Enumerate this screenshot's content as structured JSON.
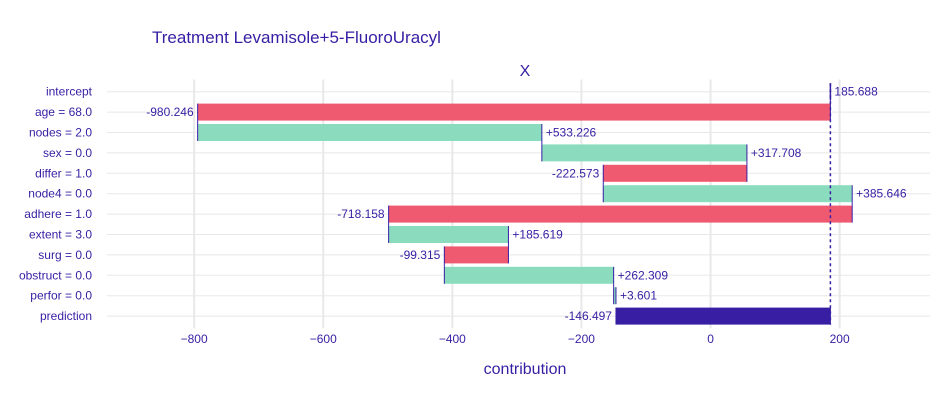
{
  "chart_data": {
    "type": "bar",
    "subtype": "waterfall (break-down)",
    "title": "Treatment Levamisole+5-FluoroUracyl",
    "subtitle": "X",
    "xlabel": "contribution",
    "xlim": [
      -935,
      340
    ],
    "xticks": [
      -800,
      -600,
      -400,
      -200,
      0,
      200
    ],
    "xtick_labels": [
      "−800",
      "−600",
      "−400",
      "−200",
      "0",
      "200"
    ],
    "grid": true,
    "intercept_value": 185.688,
    "rows": [
      {
        "label": "intercept",
        "start": 185.688,
        "end": 185.688,
        "display": "185.688",
        "kind": "intercept"
      },
      {
        "label": "age = 68.0",
        "start": 185.688,
        "end": -794.558,
        "display": "-980.246",
        "kind": "negative"
      },
      {
        "label": "nodes = 2.0",
        "start": -794.558,
        "end": -261.332,
        "display": "+533.226",
        "kind": "positive"
      },
      {
        "label": "sex = 0.0",
        "start": -261.332,
        "end": 56.376,
        "display": "+317.708",
        "kind": "positive"
      },
      {
        "label": "differ = 1.0",
        "start": 56.376,
        "end": -166.197,
        "display": "-222.573",
        "kind": "negative"
      },
      {
        "label": "node4 = 0.0",
        "start": -166.197,
        "end": 219.449,
        "display": "+385.646",
        "kind": "positive"
      },
      {
        "label": "adhere = 1.0",
        "start": 219.449,
        "end": -498.709,
        "display": "-718.158",
        "kind": "negative"
      },
      {
        "label": "extent = 3.0",
        "start": -498.709,
        "end": -313.09,
        "display": "+185.619",
        "kind": "positive"
      },
      {
        "label": "surg = 0.0",
        "start": -313.09,
        "end": -412.405,
        "display": "-99.315",
        "kind": "negative"
      },
      {
        "label": "obstruct = 0.0",
        "start": -412.405,
        "end": -150.096,
        "display": "+262.309",
        "kind": "positive"
      },
      {
        "label": "perfor = 0.0",
        "start": -150.096,
        "end": -146.495,
        "display": "+3.601",
        "kind": "positive"
      },
      {
        "label": "prediction",
        "start": 185.688,
        "end": -146.497,
        "display": "-146.497",
        "kind": "prediction"
      }
    ],
    "colors": {
      "positive": "#8bdcbe",
      "negative": "#f05a71",
      "prediction": "#371ea3",
      "connector": "#371ea3",
      "text": "#371ea3",
      "grid": "#e8e8e8"
    }
  }
}
